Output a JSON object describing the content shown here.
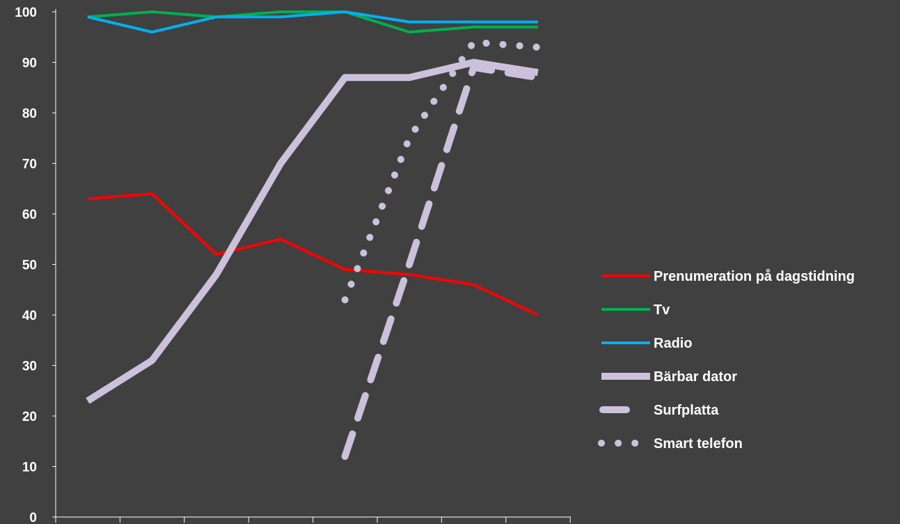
{
  "chart_data": {
    "type": "line",
    "title": "",
    "xlabel": "",
    "ylabel": "",
    "ylim": [
      0,
      100
    ],
    "y_ticks": [
      "0",
      "10",
      "20",
      "30",
      "40",
      "50",
      "60",
      "70",
      "80",
      "90",
      "100"
    ],
    "x_categories": 8,
    "grid": false,
    "legend_position": "right",
    "series": [
      {
        "name": "Prenumeration på dagstidning",
        "color": "#ff0000",
        "style": "solid-thin",
        "points": [
          [
            0,
            63
          ],
          [
            1,
            64
          ],
          [
            2,
            52
          ],
          [
            3,
            55
          ],
          [
            4,
            49
          ],
          [
            5,
            48
          ],
          [
            6,
            46
          ],
          [
            7,
            40
          ]
        ]
      },
      {
        "name": "Tv",
        "color": "#00b050",
        "style": "solid-thin",
        "points": [
          [
            0,
            99
          ],
          [
            1,
            100
          ],
          [
            2,
            99
          ],
          [
            3,
            100
          ],
          [
            4,
            100
          ],
          [
            5,
            96
          ],
          [
            6,
            97
          ],
          [
            7,
            97
          ]
        ]
      },
      {
        "name": "Radio",
        "color": "#00b0f0",
        "style": "solid-thin",
        "points": [
          [
            0,
            99
          ],
          [
            1,
            96
          ],
          [
            2,
            99
          ],
          [
            3,
            99
          ],
          [
            4,
            100
          ],
          [
            5,
            98
          ],
          [
            6,
            98
          ],
          [
            7,
            98
          ]
        ]
      },
      {
        "name": "Bärbar dator",
        "color": "#ccc1da",
        "style": "solid-thick",
        "points": [
          [
            0,
            23
          ],
          [
            1,
            31
          ],
          [
            2,
            48
          ],
          [
            3,
            70
          ],
          [
            4,
            87
          ],
          [
            5,
            87
          ],
          [
            6,
            90
          ],
          [
            7,
            88
          ]
        ]
      },
      {
        "name": "Surfplatta",
        "color": "#ccc1da",
        "style": "dashed-thick",
        "points": [
          [
            4,
            12
          ],
          [
            5,
            50
          ],
          [
            6,
            89
          ],
          [
            7,
            87
          ]
        ]
      },
      {
        "name": "Smart telefon",
        "color": "#ccc1da",
        "style": "dotted-thick",
        "points": [
          [
            4,
            43
          ],
          [
            5,
            75
          ],
          [
            6,
            94
          ],
          [
            7,
            93
          ]
        ]
      }
    ]
  }
}
